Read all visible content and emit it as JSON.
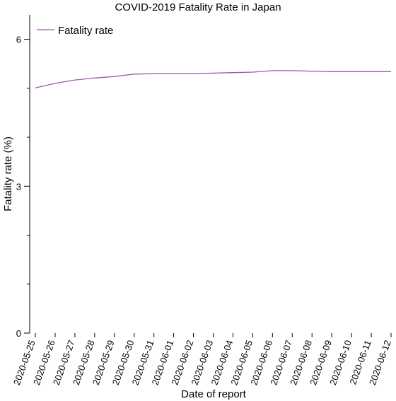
{
  "chart_data": {
    "type": "line",
    "title": "COVID-2019 Fatality Rate in Japan",
    "xlabel": "Date of report",
    "ylabel": "Fatality rate (%)",
    "legend_position": "top-left",
    "grid": false,
    "ylim": [
      0,
      6.5
    ],
    "yticks": [
      0,
      3,
      6
    ],
    "yminor_ticks": [
      1,
      2,
      4,
      5
    ],
    "categories": [
      "2020-05-25",
      "2020-05-26",
      "2020-05-27",
      "2020-05-28",
      "2020-05-29",
      "2020-05-30",
      "2020-05-31",
      "2020-06-01",
      "2020-06-02",
      "2020-06-03",
      "2020-06-04",
      "2020-06-05",
      "2020-06-06",
      "2020-06-07",
      "2020-06-08",
      "2020-06-09",
      "2020-06-10",
      "2020-06-11",
      "2020-06-12"
    ],
    "series": [
      {
        "name": "Fatality rate",
        "color": "#9b59a6",
        "values": [
          5.01,
          5.1,
          5.17,
          5.21,
          5.24,
          5.29,
          5.3,
          5.3,
          5.3,
          5.31,
          5.32,
          5.33,
          5.36,
          5.36,
          5.35,
          5.34,
          5.34,
          5.34,
          5.34
        ]
      }
    ]
  }
}
